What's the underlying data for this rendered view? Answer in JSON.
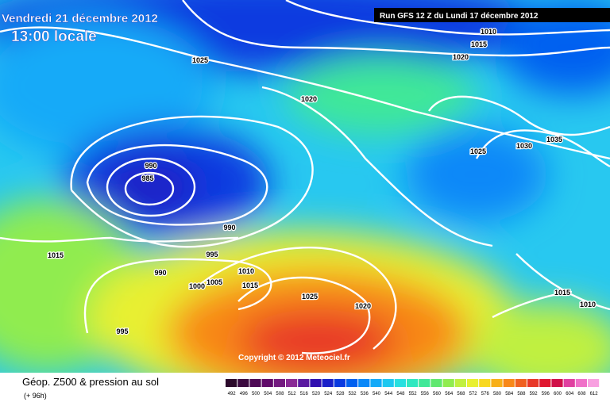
{
  "header": {
    "date": "Vendredi 21 décembre 2012",
    "time": "13:00 locale",
    "run": "Run GFS 12 Z du Lundi 17 décembre 2012"
  },
  "copyright": "Copyright © 2012 Meteociel.fr",
  "footer": {
    "title": "Géop. Z500 & pression au sol",
    "lead": "(+ 96h)"
  },
  "isobar_labels": [
    1025,
    1020,
    1015,
    1010,
    1020,
    1025,
    1030,
    1035,
    990,
    985,
    990,
    995,
    990,
    1000,
    1005,
    1010,
    1015,
    1015,
    995,
    1025,
    1020,
    1015,
    1010
  ],
  "scale": [
    {
      "value": 492,
      "color": "#2b0a2b"
    },
    {
      "value": 496,
      "color": "#3c0a40"
    },
    {
      "value": 500,
      "color": "#4e0a55"
    },
    {
      "value": 504,
      "color": "#600a6a"
    },
    {
      "value": 508,
      "color": "#741a80"
    },
    {
      "value": 512,
      "color": "#8a2a96"
    },
    {
      "value": 516,
      "color": "#5a1aa0"
    },
    {
      "value": 520,
      "color": "#3010b0"
    },
    {
      "value": 524,
      "color": "#1a20c8"
    },
    {
      "value": 528,
      "color": "#0a3ae0"
    },
    {
      "value": 532,
      "color": "#0060f0"
    },
    {
      "value": 536,
      "color": "#0a88f8"
    },
    {
      "value": 540,
      "color": "#14aaf8"
    },
    {
      "value": 544,
      "color": "#1ec8f0"
    },
    {
      "value": 548,
      "color": "#28e0e0"
    },
    {
      "value": 552,
      "color": "#30e8c0"
    },
    {
      "value": 556,
      "color": "#40e898"
    },
    {
      "value": 560,
      "color": "#60e870"
    },
    {
      "value": 564,
      "color": "#90ec50"
    },
    {
      "value": 568,
      "color": "#c0f040"
    },
    {
      "value": 572,
      "color": "#e8f030"
    },
    {
      "value": 576,
      "color": "#f8d820"
    },
    {
      "value": 580,
      "color": "#f8b018"
    },
    {
      "value": 584,
      "color": "#f88818"
    },
    {
      "value": 588,
      "color": "#f06020"
    },
    {
      "value": 592,
      "color": "#e83828"
    },
    {
      "value": 596,
      "color": "#e01830"
    },
    {
      "value": 600,
      "color": "#d01048"
    },
    {
      "value": 604,
      "color": "#e040a0"
    },
    {
      "value": 608,
      "color": "#f070c8"
    },
    {
      "value": 612,
      "color": "#f8a0e0"
    }
  ]
}
